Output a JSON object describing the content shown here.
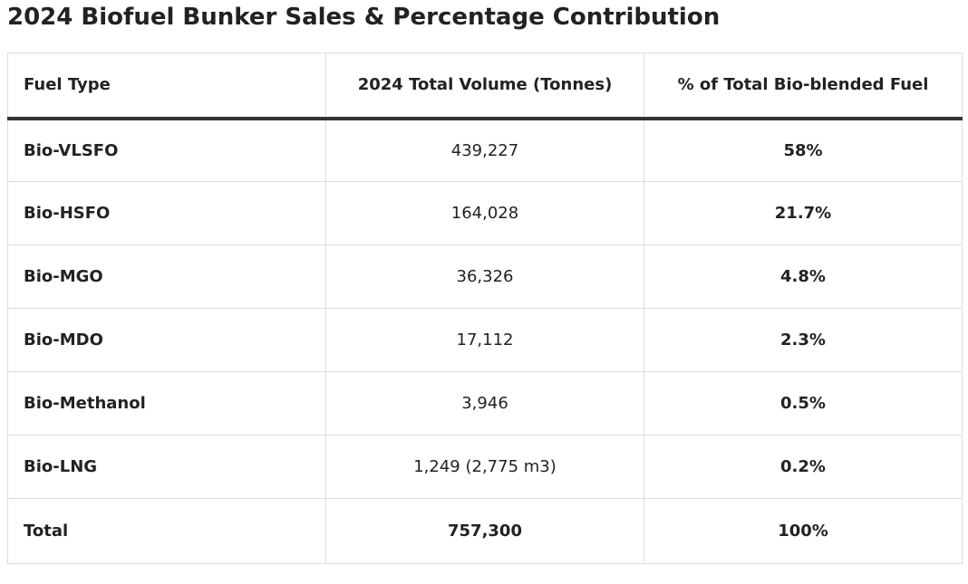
{
  "title": "2024 Biofuel Bunker Sales & Percentage Contribution",
  "table": {
    "headers": [
      "Fuel Type",
      "2024 Total Volume (Tonnes)",
      "% of Total Bio-blended Fuel"
    ],
    "rows": [
      {
        "fuel": "Bio-VLSFO",
        "volume": "439,227",
        "percent": "58%"
      },
      {
        "fuel": "Bio-HSFO",
        "volume": "164,028",
        "percent": "21.7%"
      },
      {
        "fuel": "Bio-MGO",
        "volume": "36,326",
        "percent": "4.8%"
      },
      {
        "fuel": "Bio-MDO",
        "volume": "17,112",
        "percent": "2.3%"
      },
      {
        "fuel": "Bio-Methanol",
        "volume": "3,946",
        "percent": "0.5%"
      },
      {
        "fuel": "Bio-LNG",
        "volume": "1,249 (2,775 m3)",
        "percent": "0.2%"
      }
    ],
    "total": {
      "fuel": "Total",
      "volume": "757,300",
      "percent": "100%"
    }
  },
  "colors": {
    "text": "#222222",
    "border": "#dddddd",
    "header_rule": "#333333",
    "background": "#ffffff"
  }
}
